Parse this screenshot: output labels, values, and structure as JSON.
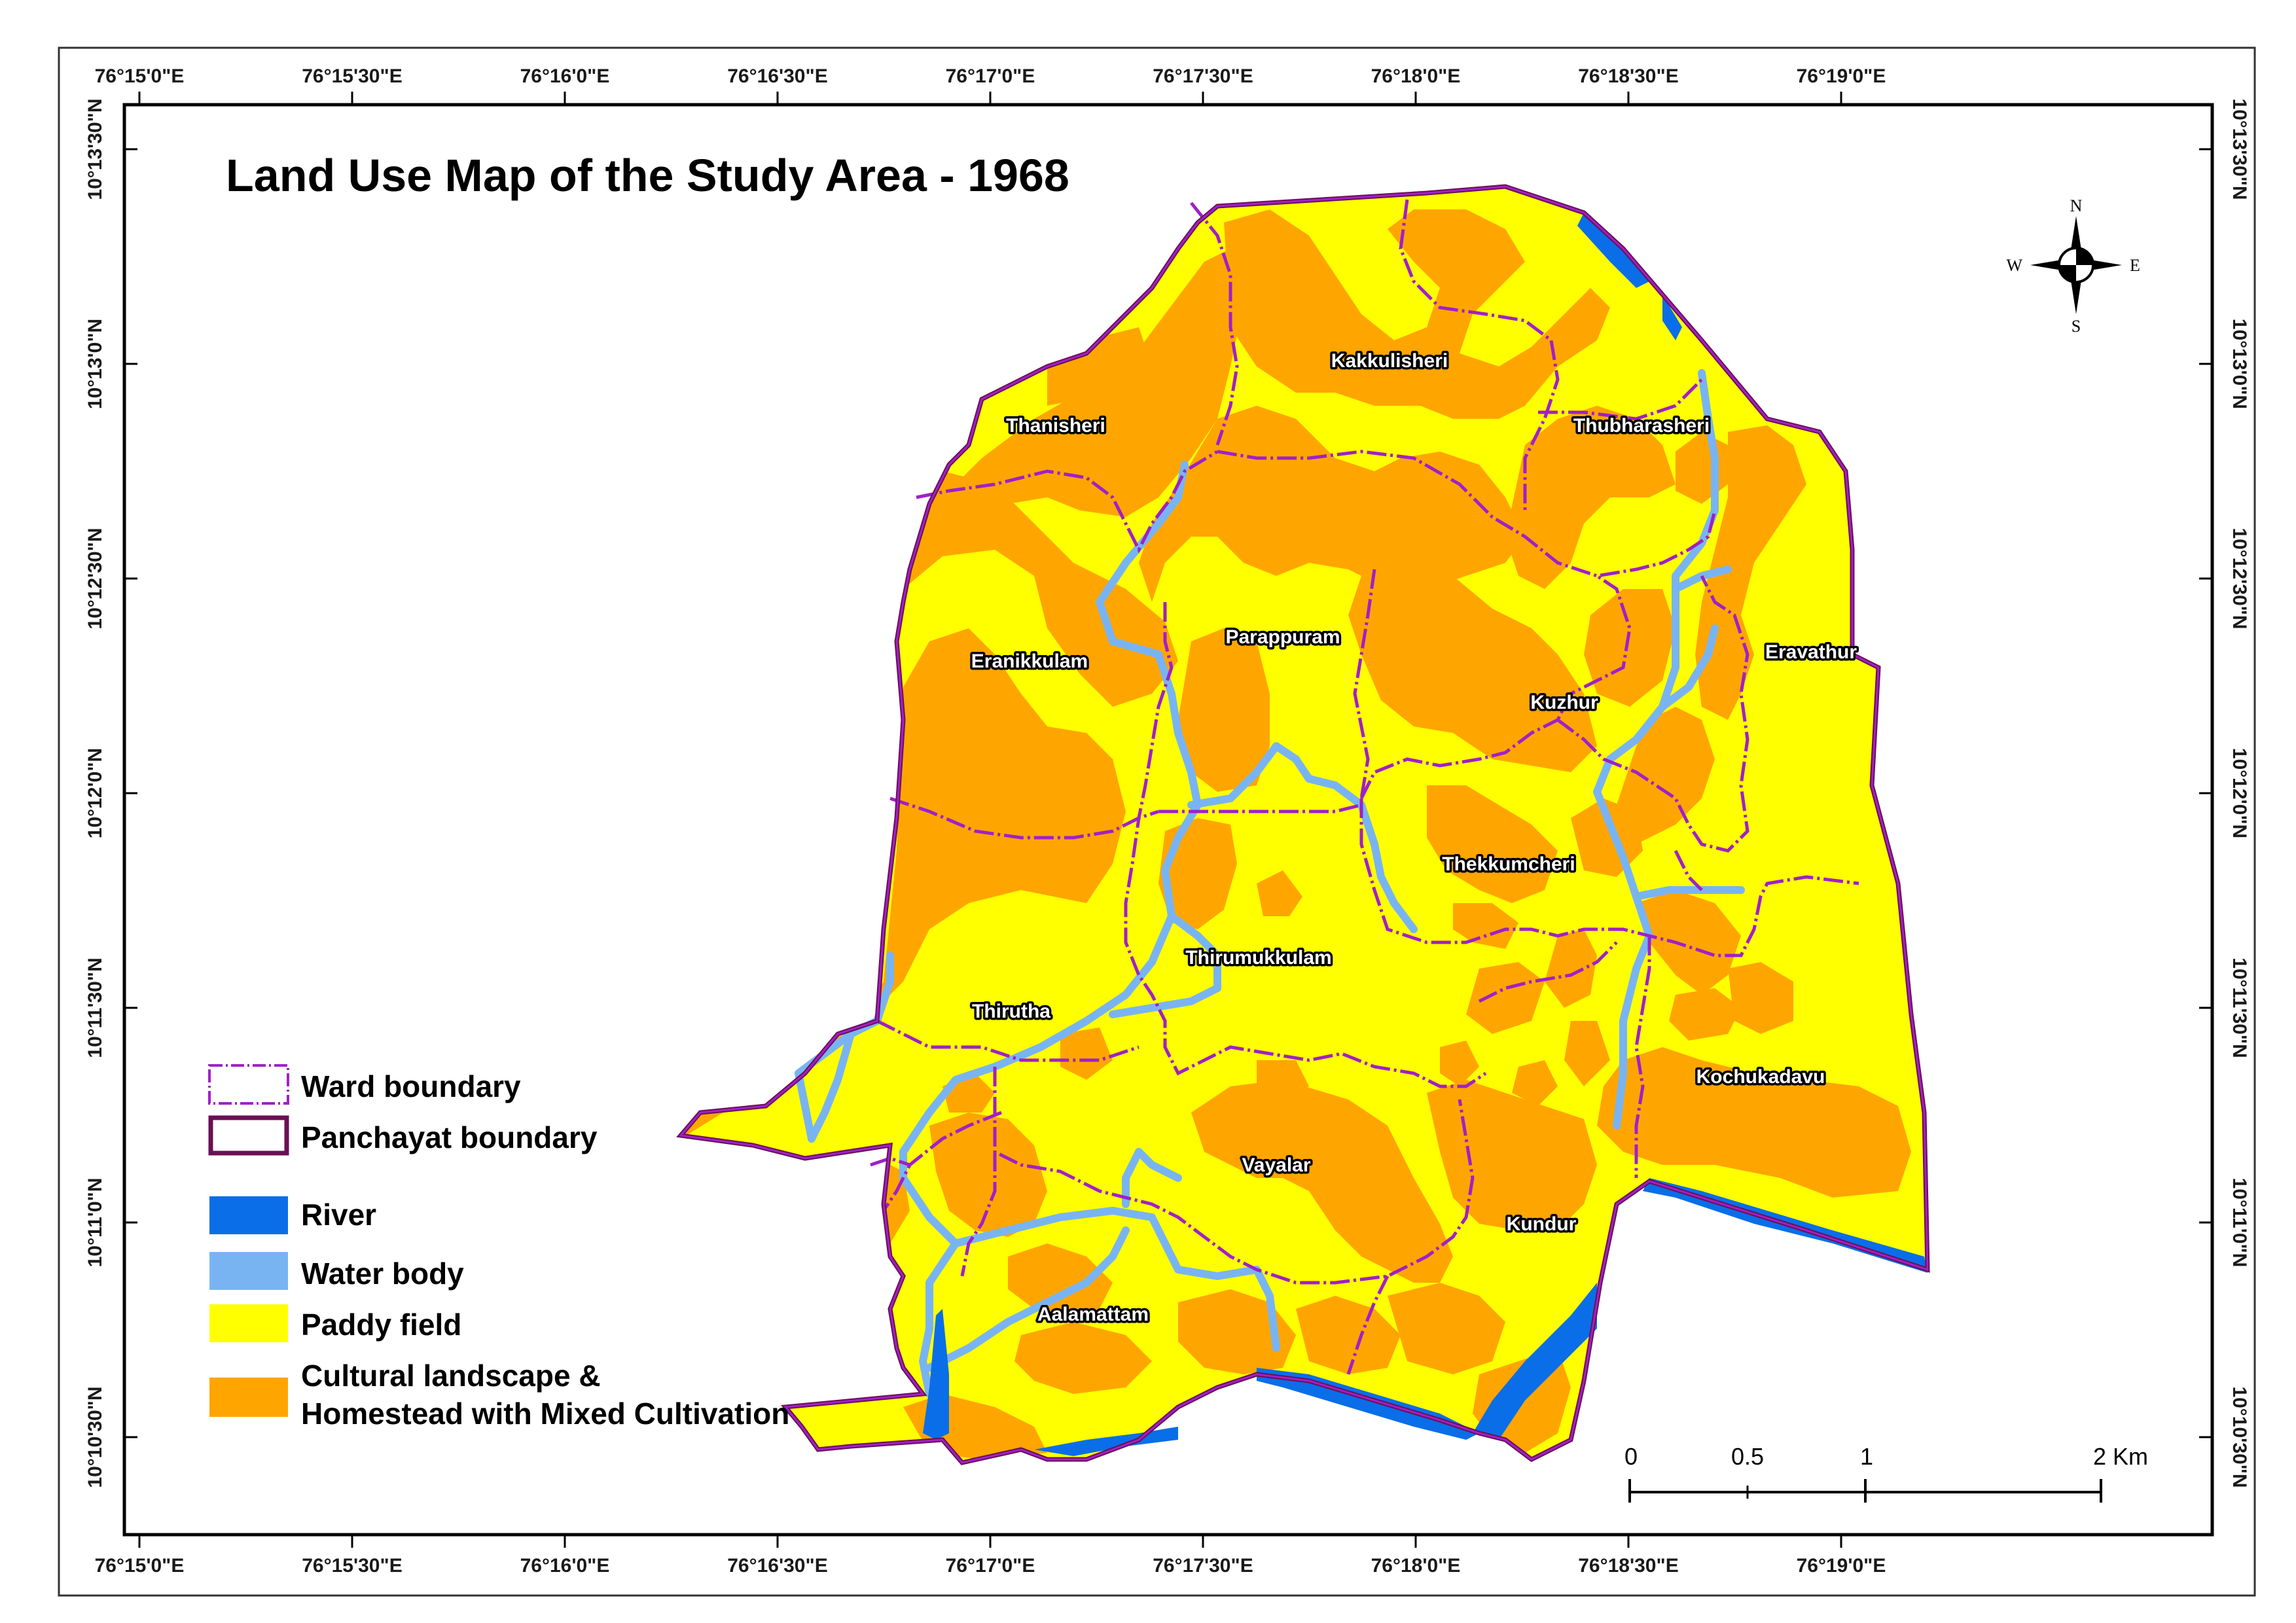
{
  "title": "Land Use Map of the Study Area - 1968",
  "longitude_labels": [
    "76°15'0\"E",
    "76°15'30\"E",
    "76°16'0\"E",
    "76°16'30\"E",
    "76°17'0\"E",
    "76°17'30\"E",
    "76°18'0\"E",
    "76°18'30\"E",
    "76°19'0\"E"
  ],
  "latitude_labels": [
    "10°13'30\"N",
    "10°13'0\"N",
    "10°12'30\"N",
    "10°12'0\"N",
    "10°11'30\"N",
    "10°11'0\"N",
    "10°10'30\"N"
  ],
  "wards": [
    "Kakkulisheri",
    "Thanisheri",
    "Thubharasheri",
    "Parappuram",
    "Eranikkulam",
    "Eravathur",
    "Kuzhur",
    "Thekkumcheri",
    "Thirumukkulam",
    "Thirutha",
    "Kochukadavu",
    "Vayalar",
    "Kundur",
    "Aalamattam"
  ],
  "legend": {
    "ward_boundary": "Ward boundary",
    "panchayat_boundary": "Panchayat boundary",
    "river": "River",
    "water_body": "Water body",
    "paddy_field": "Paddy field",
    "cultural_line1": "Cultural landscape &",
    "cultural_line2": "Homestead with Mixed Cultivation"
  },
  "colors": {
    "paddy_field": "#ffff00",
    "cultural_landscape": "#ffa500",
    "river": "#0a6ee8",
    "water_body": "#79b4f2",
    "ward_boundary": "#a020c8",
    "panchayat_boundary": "#6b0f55"
  },
  "scale_bar": {
    "ticks": [
      "0",
      "0.5",
      "1",
      "2 Km"
    ]
  },
  "compass": {
    "n": "N",
    "s": "S",
    "e": "E",
    "w": "W"
  }
}
